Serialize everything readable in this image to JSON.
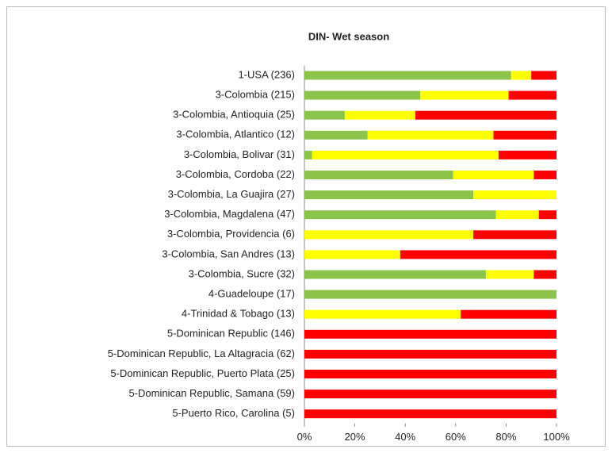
{
  "chart_data": {
    "type": "stacked-bar-horizontal",
    "title": "DIN- Wet season",
    "categories": [
      "1-USA (236)",
      "3-Colombia (215)",
      "3-Colombia, Antioquia (25)",
      "3-Colombia, Atlantico (12)",
      "3-Colombia, Bolivar (31)",
      "3-Colombia, Cordoba (22)",
      "3-Colombia, La Guajira (27)",
      "3-Colombia, Magdalena (47)",
      "3-Colombia, Providencia (6)",
      "3-Colombia, San Andres (13)",
      "3-Colombia, Sucre (32)",
      "4-Guadeloupe (17)",
      "4-Trinidad & Tobago (13)",
      "5-Dominican Republic (146)",
      "5-Dominican Republic, La Altagracia (62)",
      "5-Dominican Republic, Puerto Plata (25)",
      "5-Dominican Republic, Samana (59)",
      "5-Puerto Rico, Carolina (5)"
    ],
    "series": [
      {
        "color": "#8cc34b",
        "values": [
          82,
          46,
          16,
          25,
          3,
          59,
          67,
          76,
          0,
          0,
          72,
          100,
          0,
          0,
          0,
          0,
          0,
          0
        ]
      },
      {
        "color": "#ffff00",
        "values": [
          8,
          35,
          28,
          50,
          74,
          32,
          33,
          17,
          67,
          38,
          19,
          0,
          62,
          0,
          0,
          0,
          0,
          0
        ]
      },
      {
        "color": "#ff0000",
        "values": [
          10,
          19,
          56,
          25,
          23,
          9,
          0,
          7,
          33,
          62,
          9,
          0,
          38,
          100,
          100,
          100,
          100,
          100
        ]
      }
    ],
    "xlim": [
      0,
      100
    ],
    "xticks": [
      {
        "value": 0,
        "label": "0%"
      },
      {
        "value": 20,
        "label": "20%"
      },
      {
        "value": 40,
        "label": "40%"
      },
      {
        "value": 60,
        "label": "60%"
      },
      {
        "value": 80,
        "label": "80%"
      },
      {
        "value": 100,
        "label": "100%"
      }
    ]
  }
}
